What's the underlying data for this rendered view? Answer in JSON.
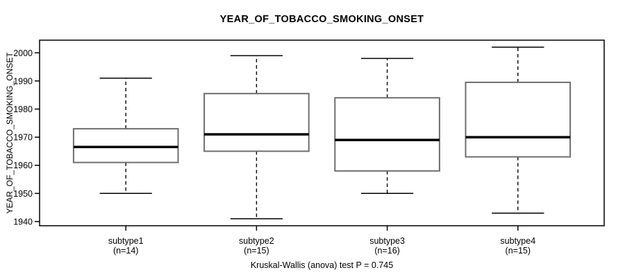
{
  "chart_data": {
    "type": "boxplot",
    "title": "YEAR_OF_TOBACCO_SMOKING_ONSET",
    "ylabel": "YEAR_OF_TOBACCO_SMOKING_ONSET",
    "xlabel": "",
    "caption": "Kruskal-Wallis (anova) test P = 0.745",
    "ylim": [
      1938.5,
      2004.5
    ],
    "yticks": [
      1940,
      1950,
      1960,
      1970,
      1980,
      1990,
      2000
    ],
    "grid": false,
    "legend": "none",
    "categories": [
      {
        "label": "subtype1",
        "n_label": "(n=14)",
        "n": 14
      },
      {
        "label": "subtype2",
        "n_label": "(n=15)",
        "n": 15
      },
      {
        "label": "subtype3",
        "n_label": "(n=16)",
        "n": 16
      },
      {
        "label": "subtype4",
        "n_label": "(n=15)",
        "n": 15
      }
    ],
    "series": [
      {
        "name": "subtype1",
        "min": 1950,
        "q1": 1961,
        "median": 1966.5,
        "q3": 1973,
        "max": 1991
      },
      {
        "name": "subtype2",
        "min": 1941,
        "q1": 1965,
        "median": 1971,
        "q3": 1985.5,
        "max": 1999
      },
      {
        "name": "subtype3",
        "min": 1950,
        "q1": 1958,
        "median": 1969,
        "q3": 1984,
        "max": 1998
      },
      {
        "name": "subtype4",
        "min": 1943,
        "q1": 1963,
        "median": 1970,
        "q3": 1989.5,
        "max": 2002
      }
    ],
    "colors": {
      "background": "#ffffff",
      "frame": "#000000",
      "box_fill": "#ffffff",
      "box_border": "#6e6e6e",
      "median": "#000000",
      "whisker": "#000000",
      "text": "#000000"
    }
  }
}
